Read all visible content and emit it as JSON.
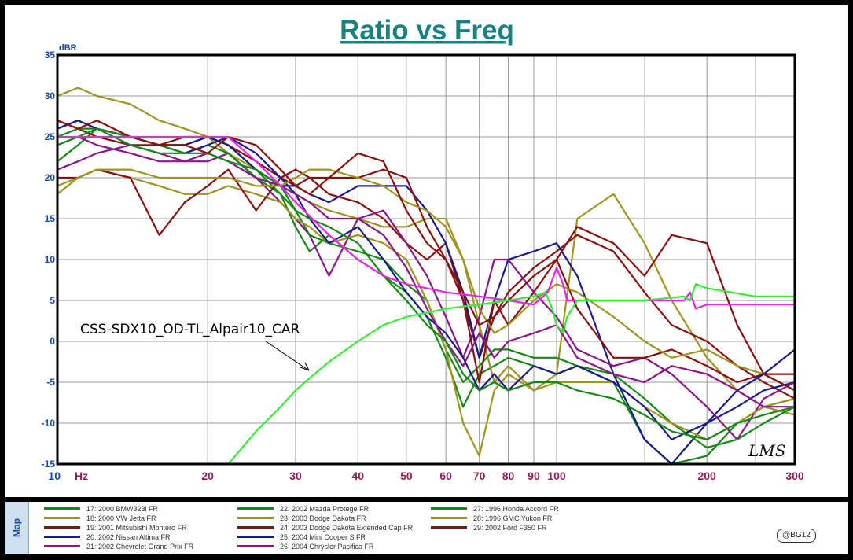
{
  "colors": {
    "Green": "#138a13",
    "Olive": "#9e9420",
    "Maroon": "#8b0f0f",
    "Navy": "#1a1a8c",
    "Purple": "#8b168b",
    "Magenta": "#ee22ee",
    "Lime": "#33ee33"
  },
  "signature": "LMS",
  "annotation": "CSS-SDX10_OD-TL_Alpair10_CAR",
  "map_label": "Map",
  "credit": "@BG12",
  "chart_data": {
    "type": "line",
    "title": "Ratio vs Freq",
    "ylabel": "dBR",
    "xlabel": "Hz",
    "x_scale": "log",
    "xlim": [
      10,
      300
    ],
    "ylim": [
      -15,
      35
    ],
    "grid": true,
    "x_ticks": [
      {
        "v": 10,
        "t": "10"
      },
      {
        "v": 20,
        "t": "20"
      },
      {
        "v": 30,
        "t": "30"
      },
      {
        "v": 40,
        "t": "40"
      },
      {
        "v": 50,
        "t": "50"
      },
      {
        "v": 60,
        "t": "60"
      },
      {
        "v": 70,
        "t": "70"
      },
      {
        "v": 80,
        "t": "80"
      },
      {
        "v": 90,
        "t": "90"
      },
      {
        "v": 100,
        "t": "100"
      },
      {
        "v": 200,
        "t": "200"
      },
      {
        "v": 300,
        "t": "300"
      }
    ],
    "x_minor": [
      150,
      250
    ],
    "y_ticks": [
      35,
      30,
      25,
      20,
      15,
      10,
      5,
      0,
      -5,
      -10,
      -15
    ],
    "series": [
      {
        "name": "17: 2000 BMW323i FR",
        "color": "Green",
        "x": [
          10,
          11,
          12,
          14,
          16,
          18,
          20,
          22,
          25,
          28,
          30,
          32,
          35,
          40,
          45,
          50,
          55,
          60,
          65,
          70,
          75,
          80,
          90,
          100,
          110,
          130,
          150,
          170,
          200,
          230,
          260,
          300
        ],
        "y": [
          22,
          24,
          26,
          25,
          24,
          24,
          25,
          24,
          21,
          18,
          14,
          11,
          13,
          10,
          8,
          6,
          3,
          -2,
          -8,
          -4,
          -3,
          -2,
          -3,
          -4,
          -3,
          -5,
          -12,
          -15,
          -14,
          -10,
          -8,
          -7
        ]
      },
      {
        "name": "18: 2000 VW Jetta FR",
        "color": "Olive",
        "x": [
          10,
          11,
          12,
          14,
          16,
          18,
          20,
          22,
          25,
          28,
          30,
          32,
          35,
          40,
          45,
          50,
          55,
          60,
          65,
          70,
          75,
          80,
          90,
          100,
          110,
          130,
          150,
          170,
          200,
          230,
          260,
          300
        ],
        "y": [
          30,
          31,
          30,
          29,
          27,
          26,
          25,
          23,
          21,
          19,
          18,
          17,
          16,
          15,
          14,
          14,
          15,
          15,
          10,
          2,
          -5,
          -3,
          -6,
          -4,
          15,
          18,
          12,
          5,
          -2,
          -6,
          -8,
          -9
        ]
      },
      {
        "name": "19: 2001 Mitsubishi Montero FR",
        "color": "Maroon",
        "x": [
          10,
          11,
          12,
          14,
          16,
          18,
          20,
          22,
          25,
          28,
          30,
          32,
          35,
          40,
          45,
          50,
          55,
          60,
          65,
          70,
          75,
          80,
          90,
          100,
          110,
          130,
          150,
          170,
          200,
          230,
          260,
          300
        ],
        "y": [
          27,
          26,
          25,
          24,
          24,
          25,
          25,
          24,
          22,
          20,
          19,
          20,
          18,
          17,
          15,
          12,
          10,
          12,
          5,
          -2,
          3,
          6,
          9,
          11,
          13,
          11,
          6,
          2,
          0,
          -3,
          -5,
          -7
        ]
      },
      {
        "name": "20: 2002 Nissan Altima FR",
        "color": "Navy",
        "x": [
          10,
          11,
          12,
          14,
          16,
          18,
          20,
          22,
          25,
          28,
          30,
          32,
          35,
          40,
          45,
          50,
          55,
          60,
          65,
          70,
          75,
          80,
          90,
          100,
          110,
          130,
          150,
          170,
          200,
          230,
          260,
          300
        ],
        "y": [
          26,
          27,
          26,
          25,
          24,
          24,
          25,
          24,
          21,
          19,
          19,
          18,
          17,
          19,
          19,
          19,
          16,
          12,
          6,
          -2,
          5,
          10,
          11,
          12,
          8,
          -4,
          -12,
          -15,
          -10,
          -8,
          -6,
          -5
        ]
      },
      {
        "name": "21: 2002 Chevrolet Grand Prix FR",
        "color": "Purple",
        "x": [
          10,
          11,
          12,
          14,
          16,
          18,
          20,
          22,
          25,
          28,
          30,
          32,
          35,
          40,
          45,
          50,
          55,
          60,
          65,
          70,
          75,
          80,
          90,
          100,
          110,
          130,
          150,
          170,
          200,
          230,
          260,
          300
        ],
        "y": [
          21,
          22,
          23,
          24,
          23,
          22,
          22,
          23,
          20,
          17,
          15,
          13,
          8,
          15,
          16,
          12,
          8,
          3,
          -2,
          3,
          10,
          10,
          6,
          3,
          -1,
          -3,
          -2,
          -4,
          -8,
          -12,
          -7,
          -5
        ]
      },
      {
        "name": "22: 2002 Mazda Protege FR",
        "color": "Green",
        "x": [
          10,
          11,
          12,
          14,
          16,
          18,
          20,
          22,
          25,
          28,
          30,
          32,
          35,
          40,
          45,
          50,
          55,
          60,
          65,
          70,
          75,
          80,
          90,
          100,
          110,
          130,
          150,
          170,
          200,
          230,
          260,
          300
        ],
        "y": [
          25,
          26,
          26,
          24,
          23,
          23,
          24,
          23,
          20,
          18,
          16,
          13,
          12,
          11,
          10,
          7,
          5,
          -1,
          -5,
          -3,
          -1,
          -1,
          -2,
          -2,
          -3,
          -4,
          -7,
          -10,
          -13,
          -12,
          -10,
          -8
        ]
      },
      {
        "name": "23: 2003 Dodge Dakota FR",
        "color": "Olive",
        "x": [
          10,
          11,
          12,
          14,
          16,
          18,
          20,
          22,
          25,
          28,
          30,
          32,
          35,
          40,
          45,
          50,
          55,
          60,
          65,
          70,
          75,
          80,
          90,
          100,
          110,
          130,
          150,
          170,
          200,
          230,
          260,
          300
        ],
        "y": [
          18,
          20,
          21,
          20,
          19,
          18,
          18,
          19,
          18,
          17,
          15,
          14,
          12,
          13,
          12,
          10,
          5,
          -1,
          -10,
          -14,
          -6,
          -4,
          -6,
          -5,
          -5,
          -5,
          -8,
          -10,
          -12,
          -10,
          -8,
          -7
        ]
      },
      {
        "name": "24: 2003 Dodge Dakota Extended Cap FR",
        "color": "Maroon",
        "x": [
          10,
          11,
          12,
          14,
          16,
          18,
          20,
          22,
          25,
          28,
          30,
          32,
          35,
          40,
          45,
          50,
          55,
          60,
          65,
          70,
          75,
          80,
          90,
          100,
          110,
          130,
          150,
          170,
          200,
          230,
          260,
          300
        ],
        "y": [
          20,
          20,
          21,
          20,
          13,
          17,
          19,
          21,
          16,
          20,
          21,
          20,
          20,
          20,
          21,
          20,
          14,
          10,
          5,
          -5,
          5,
          2,
          6,
          10,
          4,
          -2,
          -2,
          -1,
          -3,
          -5,
          -4,
          -4
        ]
      },
      {
        "name": "25: 2004 Mini Cooper S FR",
        "color": "Navy",
        "x": [
          10,
          11,
          12,
          14,
          16,
          18,
          20,
          22,
          25,
          28,
          30,
          32,
          35,
          40,
          45,
          50,
          55,
          60,
          65,
          70,
          75,
          80,
          90,
          100,
          110,
          130,
          150,
          170,
          200,
          230,
          260,
          300
        ],
        "y": [
          26,
          27,
          26,
          25,
          24,
          23,
          24,
          25,
          23,
          20,
          18,
          15,
          12,
          14,
          10,
          6,
          3,
          1,
          -2,
          -6,
          -4,
          -6,
          -3,
          -4,
          -3,
          -5,
          -8,
          -12,
          -10,
          -6,
          -4,
          -1
        ]
      },
      {
        "name": "26: 2004 Chrysler Pacifica FR",
        "color": "Purple",
        "x": [
          10,
          11,
          12,
          14,
          16,
          18,
          20,
          22,
          25,
          28,
          30,
          32,
          35,
          40,
          45,
          50,
          55,
          60,
          65,
          70,
          75,
          80,
          90,
          100,
          110,
          130,
          150,
          170,
          200,
          230,
          260,
          300
        ],
        "y": [
          24,
          25,
          24,
          23,
          22,
          22,
          23,
          22,
          20,
          19,
          18,
          17,
          15,
          15,
          13,
          9,
          4,
          0,
          -3,
          1,
          -2,
          0,
          1,
          2,
          -2,
          -4,
          -5,
          -3,
          -4,
          -6,
          -8,
          -8
        ]
      },
      {
        "name": "27: 1996 Honda Accord FR",
        "color": "Green",
        "x": [
          10,
          11,
          12,
          14,
          16,
          18,
          20,
          22,
          25,
          28,
          30,
          32,
          35,
          40,
          45,
          50,
          55,
          60,
          65,
          70,
          75,
          80,
          90,
          100,
          110,
          130,
          150,
          170,
          200,
          230,
          260,
          300
        ],
        "y": [
          24,
          25,
          26,
          25,
          24,
          23,
          23,
          22,
          21,
          19,
          16,
          15,
          14,
          12,
          8,
          5,
          2,
          0,
          -4,
          -6,
          -5,
          -6,
          -5,
          -5,
          -6,
          -7,
          -9,
          -11,
          -12,
          -10,
          -9,
          -8
        ]
      },
      {
        "name": "28: 1996 GMC Yukon FR",
        "color": "Olive",
        "x": [
          10,
          11,
          12,
          14,
          16,
          18,
          20,
          22,
          25,
          28,
          30,
          32,
          35,
          40,
          45,
          50,
          55,
          60,
          65,
          70,
          75,
          80,
          90,
          100,
          110,
          130,
          150,
          170,
          200,
          230,
          260,
          300
        ],
        "y": [
          19,
          20,
          21,
          21,
          20,
          20,
          20,
          20,
          19,
          19,
          20,
          21,
          21,
          20,
          19,
          17,
          16,
          14,
          10,
          4,
          1,
          2,
          5,
          7,
          6,
          3,
          0,
          -2,
          -1,
          -3,
          -4,
          -6
        ]
      },
      {
        "name": "29: 2002 Ford F350 FR",
        "color": "Maroon",
        "x": [
          10,
          11,
          12,
          14,
          16,
          18,
          20,
          22,
          25,
          28,
          30,
          32,
          35,
          40,
          45,
          50,
          55,
          60,
          65,
          70,
          75,
          80,
          90,
          100,
          110,
          130,
          150,
          170,
          200,
          230,
          260,
          300
        ],
        "y": [
          27,
          26,
          27,
          25,
          24,
          24,
          23,
          25,
          24,
          21,
          19,
          18,
          20,
          23,
          22,
          16,
          12,
          10,
          6,
          2,
          3,
          5,
          8,
          10,
          14,
          12,
          8,
          13,
          12,
          2,
          -4,
          -6
        ]
      },
      {
        "name": "",
        "color": "Magenta",
        "x": [
          10,
          20,
          21,
          22,
          25,
          28,
          30,
          35,
          40,
          45,
          50,
          55,
          60,
          70,
          80,
          90,
          96,
          100,
          103,
          105,
          110,
          120,
          150,
          180,
          185,
          190,
          200,
          300
        ],
        "y": [
          25,
          25,
          25,
          25,
          22,
          19,
          17,
          13,
          10,
          8,
          7,
          6.5,
          6,
          5.5,
          5,
          4.5,
          6,
          9,
          7,
          5,
          5,
          5,
          5,
          5,
          6,
          4,
          4.5,
          4.5
        ]
      },
      {
        "name": "",
        "color": "Lime",
        "x": [
          22,
          25,
          28,
          30,
          32,
          35,
          40,
          45,
          50,
          55,
          60,
          70,
          80,
          90,
          95,
          98,
          100,
          103,
          105,
          110,
          120,
          150,
          180,
          185,
          190,
          200,
          250,
          300
        ],
        "y": [
          -15,
          -11,
          -8,
          -6,
          -4.5,
          -2.5,
          0,
          2,
          3,
          3.5,
          4,
          4.5,
          5,
          5.5,
          6,
          4,
          2,
          1,
          3,
          5,
          5,
          5,
          5.5,
          5,
          7,
          6.5,
          5.5,
          5.5
        ]
      }
    ]
  }
}
